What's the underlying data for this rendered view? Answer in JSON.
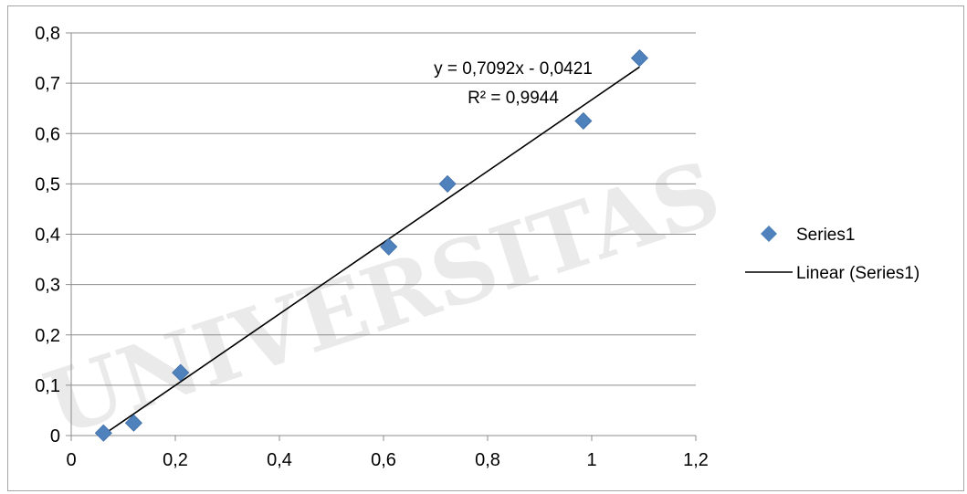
{
  "chart_data": {
    "type": "scatter",
    "title": "",
    "xlabel": "",
    "ylabel": "",
    "xlim": [
      0,
      1.2
    ],
    "ylim": [
      0,
      0.8
    ],
    "xticks": [
      0,
      0.2,
      0.4,
      0.6,
      0.8,
      1,
      1.2
    ],
    "yticks": [
      0,
      0.1,
      0.2,
      0.3,
      0.4,
      0.5,
      0.6,
      0.7,
      0.8
    ],
    "xtick_labels": [
      "0",
      "0,2",
      "0,4",
      "0,6",
      "0,8",
      "1",
      "1,2"
    ],
    "ytick_labels": [
      "0",
      "0,1",
      "0,2",
      "0,3",
      "0,4",
      "0,5",
      "0,6",
      "0,7",
      "0,8"
    ],
    "grid": "horizontal",
    "legend_position": "right",
    "series": [
      {
        "name": "Series1",
        "marker": "diamond",
        "color": "#4f81bd",
        "x": [
          0.062,
          0.12,
          0.21,
          0.61,
          0.723,
          0.984,
          1.092
        ],
        "y": [
          0.005,
          0.025,
          0.125,
          0.375,
          0.5,
          0.625,
          0.75
        ]
      }
    ],
    "trendline": {
      "name": "Linear (Series1)",
      "color": "#000000",
      "slope": 0.7092,
      "intercept": -0.0421,
      "x_range": [
        0.062,
        1.092
      ],
      "equation": "y = 0,7092x - 0,0421",
      "r_squared": "R² = 0,9944"
    }
  },
  "watermark": {
    "text": "UNIVERSITAS"
  }
}
